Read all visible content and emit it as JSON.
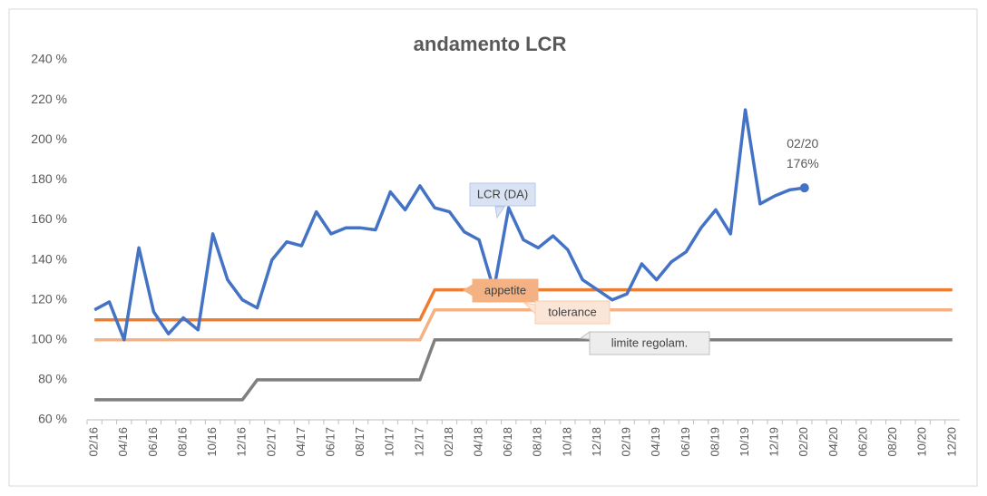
{
  "chart_data": {
    "type": "line",
    "title": "andamento LCR",
    "categories": [
      "02/16",
      null,
      "04/16",
      null,
      "06/16",
      null,
      "08/16",
      null,
      "10/16",
      null,
      "12/16",
      null,
      "02/17",
      null,
      "04/17",
      null,
      "06/17",
      null,
      "08/17",
      null,
      "10/17",
      null,
      "12/17",
      null,
      "02/18",
      null,
      "04/18",
      null,
      "06/18",
      null,
      "08/18",
      null,
      "10/18",
      null,
      "12/18",
      null,
      "02/19",
      null,
      "04/19",
      null,
      "06/19",
      null,
      "08/19",
      null,
      "10/19",
      null,
      "12/19",
      null,
      "02/20",
      null,
      "04/20",
      null,
      "06/20",
      null,
      "08/20",
      null,
      "10/20",
      null,
      "12/20"
    ],
    "series": [
      {
        "name": "LCR (DA)",
        "color": "#4472c4",
        "values": [
          115,
          119,
          100,
          146,
          114,
          103,
          111,
          105,
          153,
          130,
          120,
          116,
          140,
          149,
          147,
          164,
          153,
          156,
          156,
          155,
          174,
          165,
          177,
          166,
          164,
          154,
          150,
          125,
          166,
          150,
          146,
          152,
          145,
          130,
          125,
          120,
          123,
          138,
          130,
          139,
          144,
          156,
          165,
          153,
          215,
          168,
          172,
          175,
          176,
          null,
          null,
          null,
          null,
          null,
          null,
          null,
          null,
          null,
          null
        ],
        "value_labels": [
          null,
          null,
          null,
          null,
          null,
          null,
          null,
          null,
          null,
          null,
          null,
          null,
          null,
          null,
          null,
          null,
          null,
          null,
          null,
          null,
          null,
          null,
          null,
          null,
          null,
          null,
          null,
          null,
          null,
          null,
          null,
          null,
          null,
          null,
          null,
          null,
          null,
          null,
          null,
          null,
          null,
          null,
          null,
          null,
          null,
          null,
          null,
          null,
          "176%",
          null,
          null,
          null,
          null,
          null,
          null,
          null,
          null,
          null,
          null
        ]
      },
      {
        "name": "appetite",
        "color": "#ed7d31",
        "values": [
          110,
          110,
          110,
          110,
          110,
          110,
          110,
          110,
          110,
          110,
          110,
          110,
          110,
          110,
          110,
          110,
          110,
          110,
          110,
          110,
          110,
          110,
          110,
          125,
          125,
          125,
          125,
          125,
          125,
          125,
          125,
          125,
          125,
          125,
          125,
          125,
          125,
          125,
          125,
          125,
          125,
          125,
          125,
          125,
          125,
          125,
          125,
          125,
          125,
          125,
          125,
          125,
          125,
          125,
          125,
          125,
          125,
          125,
          125
        ]
      },
      {
        "name": "tolerance",
        "color": "#f4b183",
        "values": [
          100,
          100,
          100,
          100,
          100,
          100,
          100,
          100,
          100,
          100,
          100,
          100,
          100,
          100,
          100,
          100,
          100,
          100,
          100,
          100,
          100,
          100,
          100,
          115,
          115,
          115,
          115,
          115,
          115,
          115,
          115,
          115,
          115,
          115,
          115,
          115,
          115,
          115,
          115,
          115,
          115,
          115,
          115,
          115,
          115,
          115,
          115,
          115,
          115,
          115,
          115,
          115,
          115,
          115,
          115,
          115,
          115,
          115,
          115
        ]
      },
      {
        "name": "limite regolam.",
        "color": "#7f7f7f",
        "values": [
          70,
          70,
          70,
          70,
          70,
          70,
          70,
          70,
          70,
          70,
          70,
          80,
          80,
          80,
          80,
          80,
          80,
          80,
          80,
          80,
          80,
          80,
          80,
          100,
          100,
          100,
          100,
          100,
          100,
          100,
          100,
          100,
          100,
          100,
          100,
          100,
          100,
          100,
          100,
          100,
          100,
          100,
          100,
          100,
          100,
          100,
          100,
          100,
          100,
          100,
          100,
          100,
          100,
          100,
          100,
          100,
          100,
          100,
          100
        ]
      }
    ],
    "ylim": [
      60,
      240
    ],
    "yticks": [
      {
        "value": 60,
        "label": "60 %"
      },
      {
        "value": 80,
        "label": "80 %"
      },
      {
        "value": 100,
        "label": "100 %"
      },
      {
        "value": 120,
        "label": "120 %"
      },
      {
        "value": 140,
        "label": "140 %"
      },
      {
        "value": 160,
        "label": "160 %"
      },
      {
        "value": 180,
        "label": "180 %"
      },
      {
        "value": 200,
        "label": "200 %"
      },
      {
        "value": 220,
        "label": "220 %"
      },
      {
        "value": 240,
        "label": "240 %"
      }
    ],
    "grid": false
  }
}
